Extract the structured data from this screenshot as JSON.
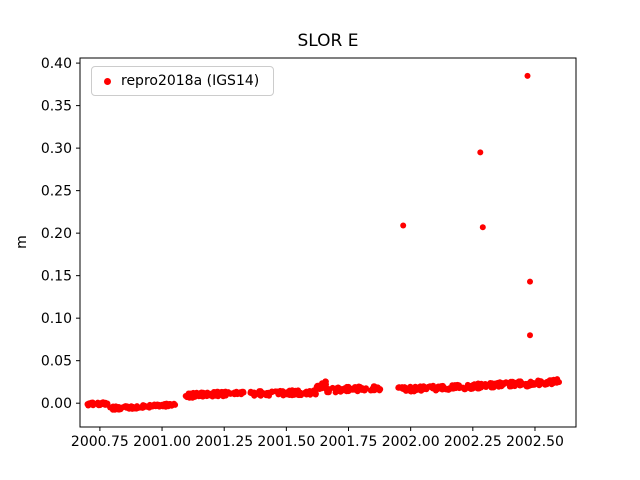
{
  "chart_data": {
    "type": "scatter",
    "title": "SLOR E",
    "xlabel": "",
    "ylabel": "m",
    "grid": false,
    "legend_position": "upper left",
    "xlim": [
      2000.67,
      2002.665
    ],
    "ylim": [
      -0.028,
      0.406
    ],
    "xticks": [
      {
        "value": 2000.75,
        "label": "2000.75"
      },
      {
        "value": 2001.0,
        "label": "2001.00"
      },
      {
        "value": 2001.25,
        "label": "2001.25"
      },
      {
        "value": 2001.5,
        "label": "2001.50"
      },
      {
        "value": 2001.75,
        "label": "2001.75"
      },
      {
        "value": 2002.0,
        "label": "2002.00"
      },
      {
        "value": 2002.25,
        "label": "2002.25"
      },
      {
        "value": 2002.5,
        "label": "2002.50"
      }
    ],
    "yticks": [
      {
        "value": 0.0,
        "label": "0.00"
      },
      {
        "value": 0.05,
        "label": "0.05"
      },
      {
        "value": 0.1,
        "label": "0.10"
      },
      {
        "value": 0.15,
        "label": "0.15"
      },
      {
        "value": 0.2,
        "label": "0.20"
      },
      {
        "value": 0.25,
        "label": "0.25"
      },
      {
        "value": 0.3,
        "label": "0.30"
      },
      {
        "value": 0.35,
        "label": "0.35"
      },
      {
        "value": 0.4,
        "label": "0.40"
      }
    ],
    "series": [
      {
        "name": "repro2018a (IGS14)",
        "color": "#ff0000",
        "marker": "dot",
        "marker_radius_px": 3,
        "band_segments": [
          {
            "x0": 2000.7,
            "x1": 2000.785,
            "y0": -0.001,
            "y1": 0.0,
            "jitter": 0.004,
            "n": 30
          },
          {
            "x0": 2000.79,
            "x1": 2000.9,
            "y0": -0.006,
            "y1": -0.005,
            "jitter": 0.004,
            "n": 40
          },
          {
            "x0": 2000.9,
            "x1": 2001.055,
            "y0": -0.004,
            "y1": -0.002,
            "jitter": 0.004,
            "n": 50
          },
          {
            "x0": 2001.09,
            "x1": 2001.33,
            "y0": 0.009,
            "y1": 0.012,
            "jitter": 0.006,
            "n": 85
          },
          {
            "x0": 2001.355,
            "x1": 2001.62,
            "y0": 0.011,
            "y1": 0.013,
            "jitter": 0.006,
            "n": 90
          },
          {
            "x0": 2001.62,
            "x1": 2001.66,
            "y0": 0.018,
            "y1": 0.022,
            "jitter": 0.009,
            "n": 18
          },
          {
            "x0": 2001.66,
            "x1": 2001.88,
            "y0": 0.015,
            "y1": 0.018,
            "jitter": 0.006,
            "n": 75
          },
          {
            "x0": 2001.95,
            "x1": 2002.2,
            "y0": 0.016,
            "y1": 0.019,
            "jitter": 0.006,
            "n": 95
          },
          {
            "x0": 2002.2,
            "x1": 2002.45,
            "y0": 0.019,
            "y1": 0.023,
            "jitter": 0.006,
            "n": 95
          },
          {
            "x0": 2002.45,
            "x1": 2002.6,
            "y0": 0.022,
            "y1": 0.026,
            "jitter": 0.006,
            "n": 55
          }
        ],
        "outliers": [
          [
            2001.97,
            0.209
          ],
          [
            2002.28,
            0.295
          ],
          [
            2002.29,
            0.207
          ],
          [
            2002.47,
            0.385
          ],
          [
            2002.48,
            0.143
          ],
          [
            2002.48,
            0.08
          ]
        ]
      }
    ]
  }
}
